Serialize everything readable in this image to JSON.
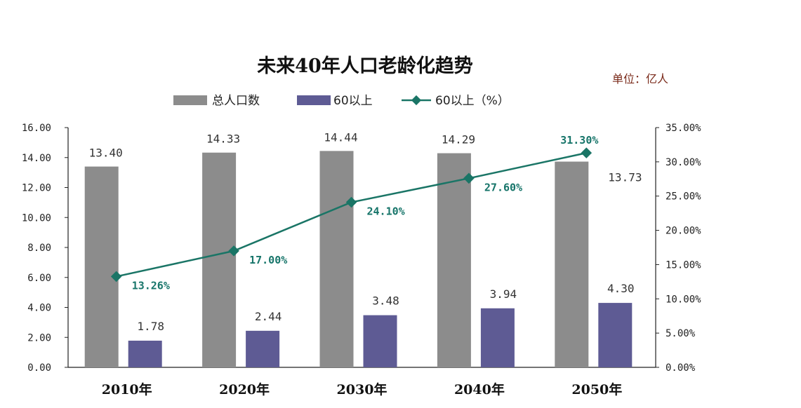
{
  "chart_data": {
    "type": "bar",
    "title": "未来40年人口老龄化趋势",
    "unit_label": "单位：亿人",
    "categories": [
      "2010年",
      "2020年",
      "2030年",
      "2040年",
      "2050年"
    ],
    "series": [
      {
        "name": "总人口数",
        "kind": "bar",
        "axis": "left",
        "color": "#8c8c8c",
        "values": [
          13.4,
          14.33,
          14.44,
          14.29,
          13.73
        ],
        "labels": [
          "13.40",
          "14.33",
          "14.44",
          "14.29",
          "13.73"
        ]
      },
      {
        "name": "60以上",
        "kind": "bar",
        "axis": "left",
        "color": "#5e5b94",
        "values": [
          1.78,
          2.44,
          3.48,
          3.94,
          4.3
        ],
        "labels": [
          "1.78",
          "2.44",
          "3.48",
          "3.94",
          "4.30"
        ]
      },
      {
        "name": "60以上（%）",
        "kind": "line",
        "axis": "right",
        "color": "#1a7566",
        "values": [
          13.26,
          17.0,
          24.1,
          27.6,
          31.3
        ],
        "labels": [
          "13.26%",
          "17.00%",
          "24.10%",
          "27.60%",
          "31.30%"
        ]
      }
    ],
    "left_axis": {
      "ylim": [
        0,
        16
      ],
      "ticks": [
        "0.00",
        "2.00",
        "4.00",
        "6.00",
        "8.00",
        "10.00",
        "12.00",
        "14.00",
        "16.00"
      ]
    },
    "right_axis": {
      "ylim": [
        0,
        35
      ],
      "ticks": [
        "0.00%",
        "5.00%",
        "10.00%",
        "15.00%",
        "20.00%",
        "25.00%",
        "30.00%",
        "35.00%"
      ]
    },
    "legend_position": "top"
  }
}
